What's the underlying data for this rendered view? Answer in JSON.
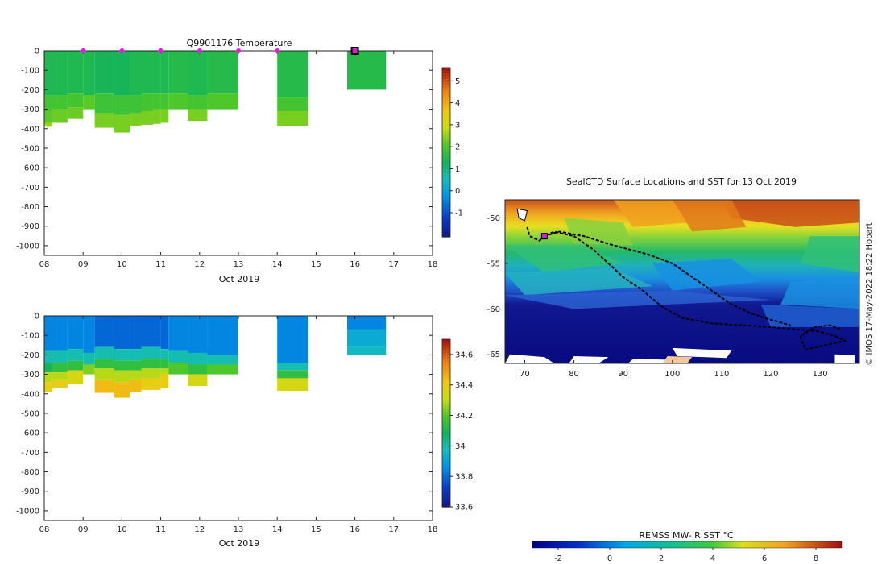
{
  "chart_data": [
    {
      "id": "temperature",
      "type": "heatmap",
      "title": "Q9901176  Temperature",
      "xlabel": "Oct 2019",
      "xlim": [
        8,
        18
      ],
      "ylim": [
        -1050,
        0
      ],
      "xticks": [
        "08",
        "09",
        "10",
        "11",
        "12",
        "13",
        "14",
        "15",
        "16",
        "17",
        "18"
      ],
      "yticks": [
        0,
        -100,
        -200,
        -300,
        -400,
        -500,
        -600,
        -700,
        -800,
        -900,
        -1000
      ],
      "colorbar": {
        "min": -2.1,
        "max": 5.6,
        "ticks": [
          5,
          4,
          3,
          2,
          1,
          0,
          -1
        ]
      },
      "profile_markers": [
        9,
        10,
        11,
        12,
        13,
        14
      ],
      "current_marker": 16,
      "columns": [
        {
          "x0": 8.0,
          "x1": 8.2,
          "layers": [
            [
              0,
              230,
              1.5
            ],
            [
              230,
              310,
              2.0
            ],
            [
              310,
              370,
              2.2
            ],
            [
              370,
              390,
              2.6
            ]
          ]
        },
        {
          "x0": 8.2,
          "x1": 8.6,
          "layers": [
            [
              0,
              230,
              1.5
            ],
            [
              230,
              300,
              2.0
            ],
            [
              300,
              370,
              2.3
            ]
          ]
        },
        {
          "x0": 8.6,
          "x1": 9.0,
          "layers": [
            [
              0,
              220,
              1.5
            ],
            [
              220,
              290,
              2.0
            ],
            [
              290,
              350,
              2.3
            ]
          ]
        },
        {
          "x0": 9.0,
          "x1": 9.3,
          "layers": [
            [
              0,
              230,
              1.5
            ],
            [
              230,
              300,
              2.2
            ]
          ]
        },
        {
          "x0": 9.3,
          "x1": 9.8,
          "layers": [
            [
              0,
              220,
              1.4
            ],
            [
              220,
              320,
              1.9
            ],
            [
              320,
              395,
              2.4
            ]
          ]
        },
        {
          "x0": 9.8,
          "x1": 10.2,
          "layers": [
            [
              0,
              230,
              1.4
            ],
            [
              230,
              330,
              1.9
            ],
            [
              330,
              420,
              2.4
            ]
          ]
        },
        {
          "x0": 10.2,
          "x1": 10.5,
          "layers": [
            [
              0,
              230,
              1.5
            ],
            [
              230,
              320,
              1.9
            ],
            [
              320,
              385,
              2.4
            ]
          ]
        },
        {
          "x0": 10.5,
          "x1": 10.8,
          "layers": [
            [
              0,
              220,
              1.5
            ],
            [
              220,
              310,
              2.0
            ],
            [
              310,
              380,
              2.4
            ]
          ]
        },
        {
          "x0": 10.8,
          "x1": 11.0,
          "layers": [
            [
              0,
              220,
              1.5
            ],
            [
              220,
              300,
              2.0
            ],
            [
              300,
              375,
              2.4
            ]
          ]
        },
        {
          "x0": 11.0,
          "x1": 11.2,
          "layers": [
            [
              0,
              220,
              1.5
            ],
            [
              220,
              300,
              2.0
            ],
            [
              300,
              370,
              2.4
            ]
          ]
        },
        {
          "x0": 11.2,
          "x1": 11.7,
          "layers": [
            [
              0,
              220,
              1.6
            ],
            [
              220,
              300,
              2.1
            ]
          ]
        },
        {
          "x0": 11.7,
          "x1": 12.2,
          "layers": [
            [
              0,
              230,
              1.5
            ],
            [
              230,
              300,
              2.0
            ],
            [
              300,
              360,
              2.4
            ]
          ]
        },
        {
          "x0": 12.2,
          "x1": 13.0,
          "layers": [
            [
              0,
              220,
              1.6
            ],
            [
              220,
              300,
              2.1
            ]
          ]
        },
        {
          "x0": 14.0,
          "x1": 14.8,
          "layers": [
            [
              0,
              240,
              1.6
            ],
            [
              240,
              310,
              2.0
            ],
            [
              310,
              385,
              2.4
            ]
          ]
        },
        {
          "x0": 15.8,
          "x1": 16.8,
          "layers": [
            [
              0,
              200,
              1.6
            ]
          ]
        }
      ]
    },
    {
      "id": "salinity",
      "type": "heatmap",
      "title": "",
      "xlabel": "Oct 2019",
      "xlim": [
        8,
        18
      ],
      "ylim": [
        -1050,
        0
      ],
      "xticks": [
        "08",
        "09",
        "10",
        "11",
        "12",
        "13",
        "14",
        "15",
        "16",
        "17",
        "18"
      ],
      "yticks": [
        0,
        -100,
        -200,
        -300,
        -400,
        -500,
        -600,
        -700,
        -800,
        -900,
        -1000
      ],
      "colorbar": {
        "min": 33.6,
        "max": 34.7,
        "ticks": [
          34.6,
          34.4,
          34.2,
          34,
          33.8,
          33.6
        ]
      },
      "columns": [
        {
          "x0": 8.0,
          "x1": 8.2,
          "layers": [
            [
              0,
              180,
              33.85
            ],
            [
              180,
              240,
              34.0
            ],
            [
              240,
              290,
              34.1
            ],
            [
              290,
              340,
              34.3
            ],
            [
              340,
              390,
              34.4
            ]
          ]
        },
        {
          "x0": 8.2,
          "x1": 8.6,
          "layers": [
            [
              0,
              180,
              33.85
            ],
            [
              180,
              240,
              34.0
            ],
            [
              240,
              290,
              34.15
            ],
            [
              290,
              330,
              34.3
            ],
            [
              330,
              370,
              34.4
            ]
          ]
        },
        {
          "x0": 8.6,
          "x1": 9.0,
          "layers": [
            [
              0,
              170,
              33.85
            ],
            [
              170,
              230,
              34.0
            ],
            [
              230,
              280,
              34.15
            ],
            [
              280,
              350,
              34.35
            ]
          ]
        },
        {
          "x0": 9.0,
          "x1": 9.3,
          "layers": [
            [
              0,
              190,
              33.85
            ],
            [
              190,
              250,
              34.0
            ],
            [
              250,
              300,
              34.25
            ]
          ]
        },
        {
          "x0": 9.3,
          "x1": 9.8,
          "layers": [
            [
              0,
              160,
              33.8
            ],
            [
              160,
              220,
              34.0
            ],
            [
              220,
              270,
              34.15
            ],
            [
              270,
              330,
              34.3
            ],
            [
              330,
              395,
              34.45
            ]
          ]
        },
        {
          "x0": 9.8,
          "x1": 10.2,
          "layers": [
            [
              0,
              170,
              33.8
            ],
            [
              170,
              230,
              34.0
            ],
            [
              230,
              280,
              34.15
            ],
            [
              280,
              340,
              34.3
            ],
            [
              340,
              420,
              34.45
            ]
          ]
        },
        {
          "x0": 10.2,
          "x1": 10.5,
          "layers": [
            [
              0,
              170,
              33.8
            ],
            [
              170,
              230,
              34.0
            ],
            [
              230,
              280,
              34.15
            ],
            [
              280,
              330,
              34.3
            ],
            [
              330,
              390,
              34.45
            ]
          ]
        },
        {
          "x0": 10.5,
          "x1": 11.0,
          "layers": [
            [
              0,
              160,
              33.8
            ],
            [
              160,
              220,
              34.0
            ],
            [
              220,
              270,
              34.15
            ],
            [
              270,
              320,
              34.3
            ],
            [
              320,
              380,
              34.4
            ]
          ]
        },
        {
          "x0": 11.0,
          "x1": 11.2,
          "layers": [
            [
              0,
              170,
              33.8
            ],
            [
              170,
              220,
              34.0
            ],
            [
              220,
              270,
              34.15
            ],
            [
              270,
              300,
              34.3
            ],
            [
              300,
              370,
              34.4
            ]
          ]
        },
        {
          "x0": 11.2,
          "x1": 11.7,
          "layers": [
            [
              0,
              180,
              33.85
            ],
            [
              180,
              240,
              34.0
            ],
            [
              240,
              300,
              34.2
            ]
          ]
        },
        {
          "x0": 11.7,
          "x1": 12.2,
          "layers": [
            [
              0,
              190,
              33.85
            ],
            [
              190,
              250,
              34.0
            ],
            [
              250,
              300,
              34.15
            ],
            [
              300,
              360,
              34.35
            ]
          ]
        },
        {
          "x0": 12.2,
          "x1": 13.0,
          "layers": [
            [
              0,
              200,
              33.85
            ],
            [
              200,
              250,
              34.0
            ],
            [
              250,
              300,
              34.2
            ]
          ]
        },
        {
          "x0": 14.0,
          "x1": 14.8,
          "layers": [
            [
              0,
              240,
              33.85
            ],
            [
              240,
              280,
              34.0
            ],
            [
              280,
              320,
              34.15
            ],
            [
              320,
              385,
              34.35
            ]
          ]
        },
        {
          "x0": 15.8,
          "x1": 16.8,
          "layers": [
            [
              0,
              70,
              33.85
            ],
            [
              70,
              160,
              33.93
            ],
            [
              160,
              200,
              33.97
            ]
          ]
        }
      ]
    },
    {
      "id": "sst-map",
      "type": "heatmap",
      "title": "SealCTD Surface Locations and SST for 13 Oct 2019",
      "xlim": [
        66,
        138
      ],
      "ylim": [
        -66,
        -48
      ],
      "xticks": [
        70,
        80,
        90,
        100,
        110,
        120,
        130
      ],
      "yticks": [
        -50,
        -55,
        -60,
        -65
      ],
      "side_text": "© IMOS 17-May-2022 18:22 Hobart",
      "track": [
        [
          70.5,
          -51
        ],
        [
          71,
          -52
        ],
        [
          73,
          -52.5
        ],
        [
          74,
          -52
        ],
        [
          76,
          -51.5
        ],
        [
          80,
          -52
        ],
        [
          84,
          -53.5
        ],
        [
          87,
          -55
        ],
        [
          90,
          -56.5
        ],
        [
          94,
          -58
        ],
        [
          98,
          -59.8
        ],
        [
          102,
          -61
        ],
        [
          108,
          -61.6
        ],
        [
          114,
          -61.8
        ],
        [
          120,
          -62
        ],
        [
          126,
          -62.3
        ],
        [
          130,
          -62.5
        ],
        [
          133,
          -63
        ],
        [
          135,
          -63.5
        ],
        [
          131,
          -64
        ],
        [
          127,
          -64.5
        ],
        [
          126,
          -63
        ],
        [
          129,
          -62
        ],
        [
          132,
          -61.8
        ],
        [
          134,
          -62.2
        ]
      ],
      "track2": [
        [
          74,
          -52
        ],
        [
          77,
          -51.5
        ],
        [
          82,
          -52
        ],
        [
          88,
          -53
        ],
        [
          95,
          -54
        ],
        [
          100,
          -55
        ],
        [
          104,
          -56.5
        ],
        [
          108,
          -58
        ],
        [
          112,
          -59.5
        ],
        [
          116,
          -60.5
        ],
        [
          120,
          -61.2
        ],
        [
          124,
          -61.8
        ]
      ],
      "seal_location": [
        74,
        -52
      ]
    },
    {
      "id": "sst-colorbar",
      "type": "heatmap",
      "title": "REMSS MW-IR SST °C",
      "range": [
        -3,
        9
      ],
      "ticks": [
        -2,
        0,
        2,
        4,
        6,
        8
      ]
    }
  ]
}
